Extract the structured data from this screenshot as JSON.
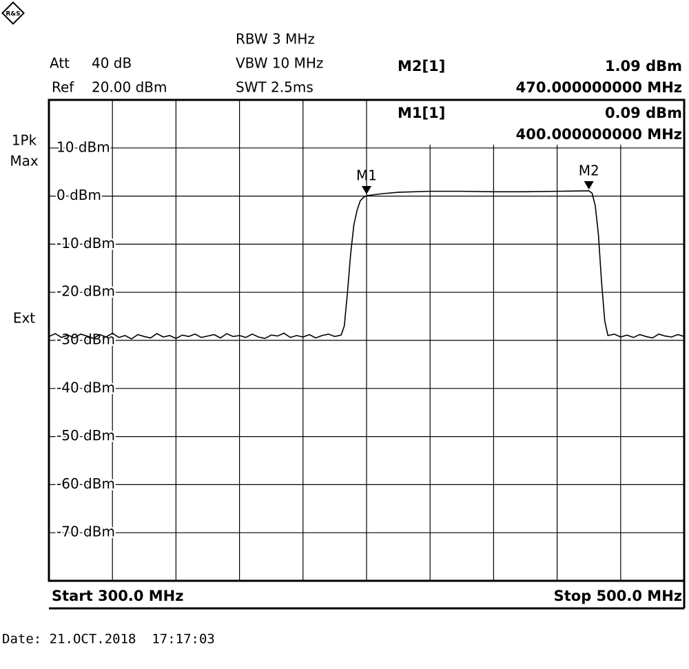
{
  "chart_data": {
    "type": "line",
    "logo": "R&S",
    "header": {
      "att_label": "Att",
      "att_value": "40 dB",
      "ref_label": "Ref",
      "ref_value": "20.00 dBm",
      "rbw": "RBW 3 MHz",
      "vbw": "VBW 10 MHz",
      "swt": "SWT 2.5ms"
    },
    "side_labels": [
      "1Pk",
      "Max",
      "Ext"
    ],
    "markers": [
      {
        "label": "M1",
        "readout": "M1[1]",
        "x": 400,
        "y": 0.09,
        "value_label": "0.09 dBm",
        "freq_label": "400.000000000 MHz"
      },
      {
        "label": "M2",
        "readout": "M2[1]",
        "x": 470,
        "y": 1.09,
        "value_label": "1.09 dBm",
        "freq_label": "470.000000000 MHz"
      }
    ],
    "start_label": "Start 300.0 MHz",
    "stop_label": "Stop 500.0 MHz",
    "date": "Date: 21.OCT.2018  17:17:03",
    "xlim": [
      300,
      500
    ],
    "ylim": [
      -80,
      20
    ],
    "yticks": [
      {
        "value": 10,
        "label": "10 dBm"
      },
      {
        "value": 0,
        "label": "0 dBm"
      },
      {
        "value": -10,
        "label": "-10 dBm"
      },
      {
        "value": -20,
        "label": "-20 dBm"
      },
      {
        "value": -30,
        "label": "-30 dBm"
      },
      {
        "value": -40,
        "label": "-40 dBm"
      },
      {
        "value": -50,
        "label": "-50 dBm"
      },
      {
        "value": -60,
        "label": "-60 dBm"
      },
      {
        "value": -70,
        "label": "-70 dBm"
      }
    ],
    "grid": true,
    "x": [
      300,
      302,
      304,
      306,
      308,
      310,
      312,
      314,
      316,
      318,
      320,
      322,
      324,
      326,
      328,
      330,
      332,
      334,
      336,
      338,
      340,
      342,
      344,
      346,
      348,
      350,
      352,
      354,
      356,
      358,
      360,
      362,
      364,
      366,
      368,
      370,
      372,
      374,
      376,
      378,
      380,
      382,
      384,
      386,
      388,
      390,
      392,
      393,
      394,
      395,
      396,
      397,
      398,
      399,
      400,
      405,
      410,
      420,
      430,
      440,
      450,
      460,
      465,
      470,
      471,
      472,
      473,
      474,
      475,
      476,
      478,
      480,
      482,
      484,
      486,
      488,
      490,
      492,
      494,
      496,
      498,
      500
    ],
    "series": [
      {
        "color": "#000000",
        "values": [
          -29.2,
          -28.6,
          -29.4,
          -28.9,
          -29.5,
          -28.7,
          -29.1,
          -29.6,
          -28.8,
          -29.3,
          -28.5,
          -29.4,
          -29.0,
          -29.7,
          -28.8,
          -29.2,
          -29.5,
          -28.6,
          -29.3,
          -29.0,
          -29.6,
          -28.9,
          -29.2,
          -28.7,
          -29.4,
          -29.1,
          -28.8,
          -29.5,
          -28.6,
          -29.2,
          -29.0,
          -29.4,
          -28.7,
          -29.3,
          -29.6,
          -28.9,
          -29.1,
          -28.5,
          -29.4,
          -29.0,
          -29.3,
          -28.8,
          -29.5,
          -29.0,
          -28.7,
          -29.2,
          -28.9,
          -27,
          -20,
          -12,
          -6,
          -3,
          -1,
          -0.3,
          0.09,
          0.5,
          0.8,
          1.0,
          1.0,
          0.9,
          0.9,
          1.0,
          1.05,
          1.09,
          0.6,
          -2,
          -8,
          -18,
          -26,
          -29,
          -28.7,
          -29.3,
          -28.9,
          -29.4,
          -28.8,
          -29.2,
          -29.5,
          -28.7,
          -29.1,
          -29.3,
          -28.8,
          -29.2
        ]
      }
    ]
  }
}
